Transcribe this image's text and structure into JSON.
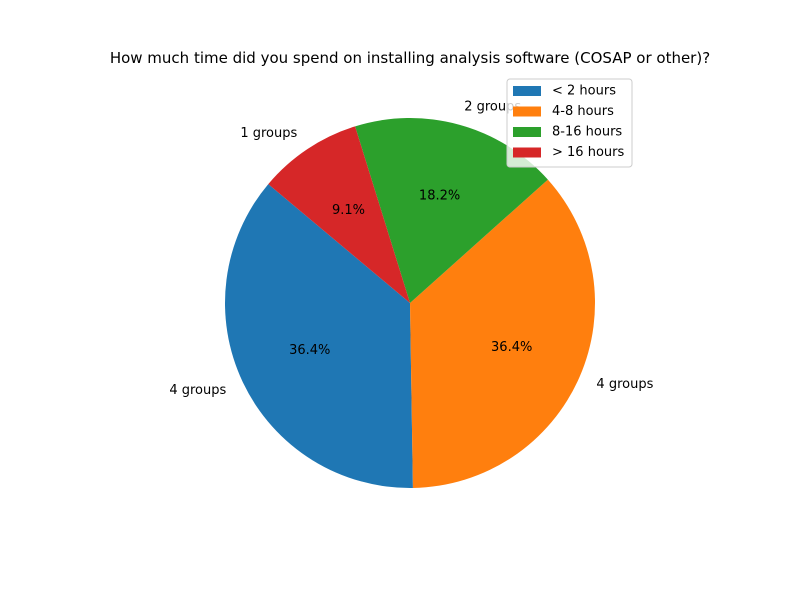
{
  "chart_data": {
    "type": "pie",
    "title": "How much time did you spend on installing analysis software (COSAP or other)?",
    "categories": [
      "< 2 hours",
      "4-8 hours",
      "8-16 hours",
      "> 16 hours"
    ],
    "values": [
      4,
      4,
      2,
      1
    ],
    "slice_labels": [
      "4 groups",
      "4 groups",
      "2 groups",
      "1 groups"
    ],
    "percent_labels": [
      "36.4%",
      "36.4%",
      "18.2%",
      "9.1%"
    ],
    "colors": [
      "#1f77b4",
      "#ff7f0e",
      "#2ca02c",
      "#d62728"
    ],
    "legend": {
      "entries": [
        "< 2 hours",
        "4-8 hours",
        "8-16 hours",
        "> 16 hours"
      ],
      "position": "top-right"
    }
  }
}
